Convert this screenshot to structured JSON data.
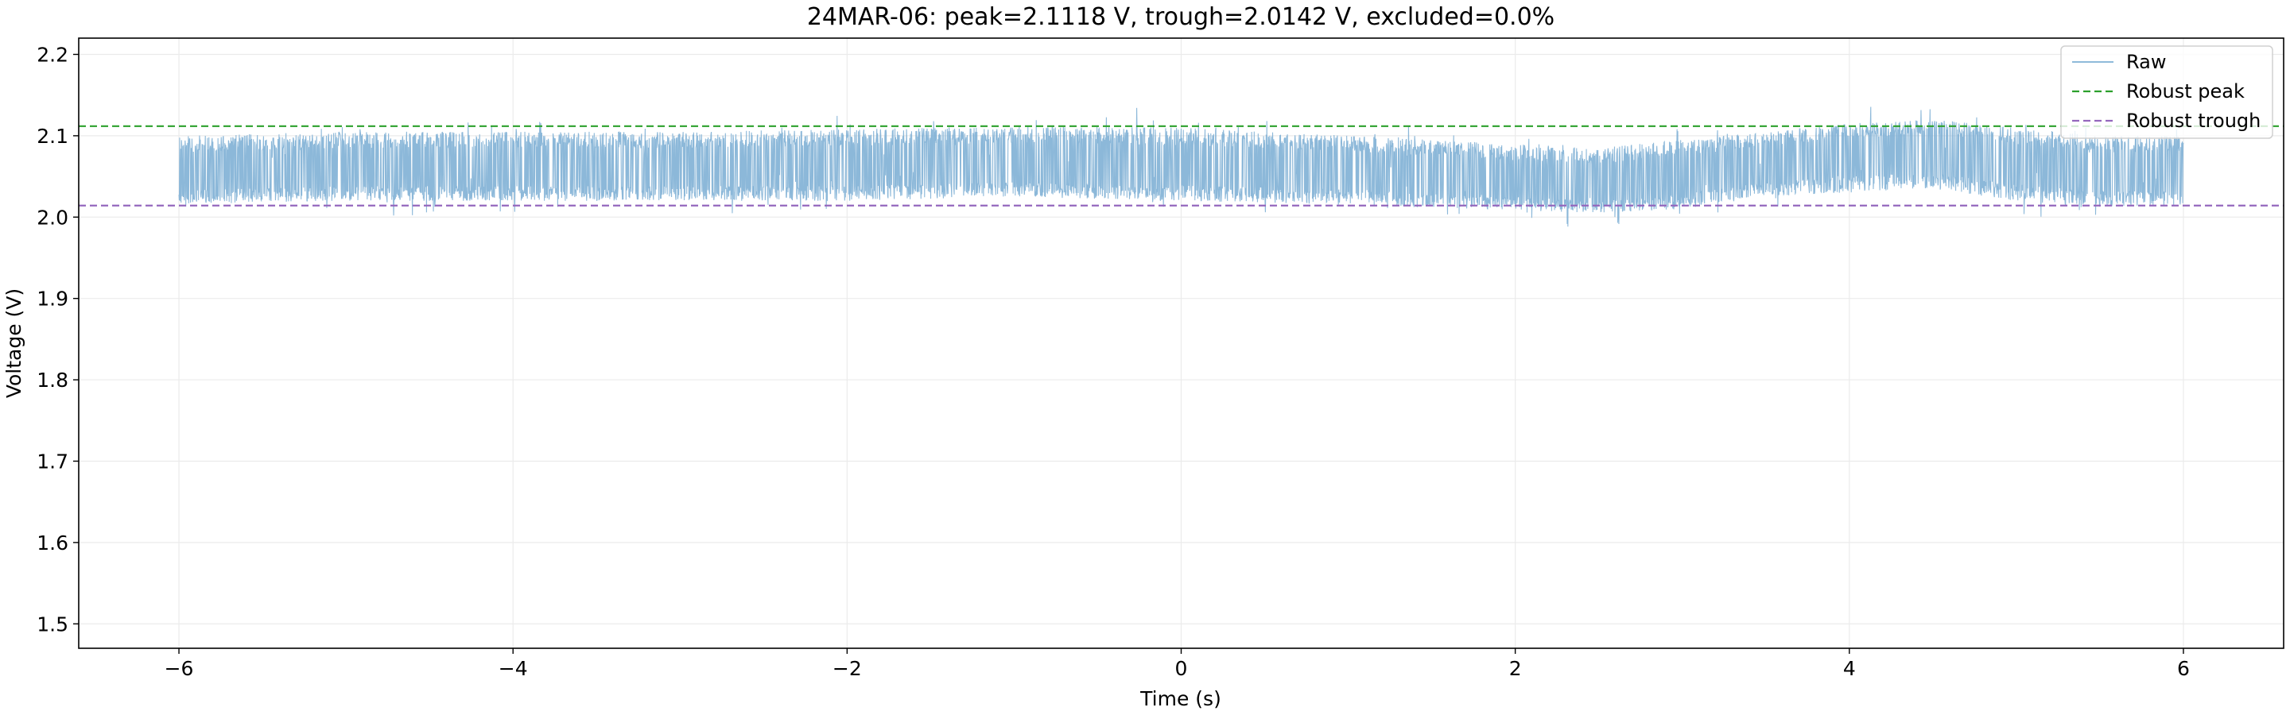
{
  "chart_data": {
    "type": "line",
    "title": "24MAR-06: peak=2.1118 V, trough=2.0142 V, excluded=0.0%",
    "xlabel": "Time (s)",
    "ylabel": "Voltage (V)",
    "xlim": [
      -6.6,
      6.6
    ],
    "ylim": [
      1.47,
      2.22
    ],
    "xticks": [
      -6,
      -4,
      -2,
      0,
      2,
      4,
      6
    ],
    "xtick_labels": [
      "−6",
      "−4",
      "−2",
      "0",
      "2",
      "4",
      "6"
    ],
    "yticks": [
      1.5,
      1.6,
      1.7,
      1.8,
      1.9,
      2.0,
      2.1,
      2.2
    ],
    "ytick_labels": [
      "1.5",
      "1.6",
      "1.7",
      "1.8",
      "1.9",
      "2.0",
      "2.1",
      "2.2"
    ],
    "grid": true,
    "legend_position": "top-right",
    "series": [
      {
        "name": "Raw",
        "color": "#7fb0d5",
        "style": "solid",
        "x_range": [
          -6,
          6
        ],
        "x": [
          -6,
          -5,
          -4,
          -3,
          -2,
          -1,
          0,
          1,
          2,
          2.5,
          3,
          3.5,
          4,
          4.5,
          5,
          5.5,
          6
        ],
        "y_upper": [
          2.1,
          2.105,
          2.105,
          2.105,
          2.108,
          2.112,
          2.11,
          2.1,
          2.09,
          2.085,
          2.095,
          2.105,
          2.115,
          2.12,
          2.11,
          2.1,
          2.1
        ],
        "y_center": [
          2.055,
          2.06,
          2.06,
          2.06,
          2.062,
          2.065,
          2.062,
          2.058,
          2.045,
          2.04,
          2.05,
          2.065,
          2.075,
          2.08,
          2.065,
          2.055,
          2.055
        ],
        "y_lower": [
          2.015,
          2.02,
          2.02,
          2.02,
          2.02,
          2.025,
          2.02,
          2.015,
          2.008,
          2.005,
          2.01,
          2.025,
          2.03,
          2.035,
          2.02,
          2.012,
          2.015
        ]
      },
      {
        "name": "Robust peak",
        "color": "#2ca02c",
        "style": "dashed",
        "y": 2.1118
      },
      {
        "name": "Robust trough",
        "color": "#9467bd",
        "style": "dashed",
        "y": 2.0142
      }
    ]
  }
}
